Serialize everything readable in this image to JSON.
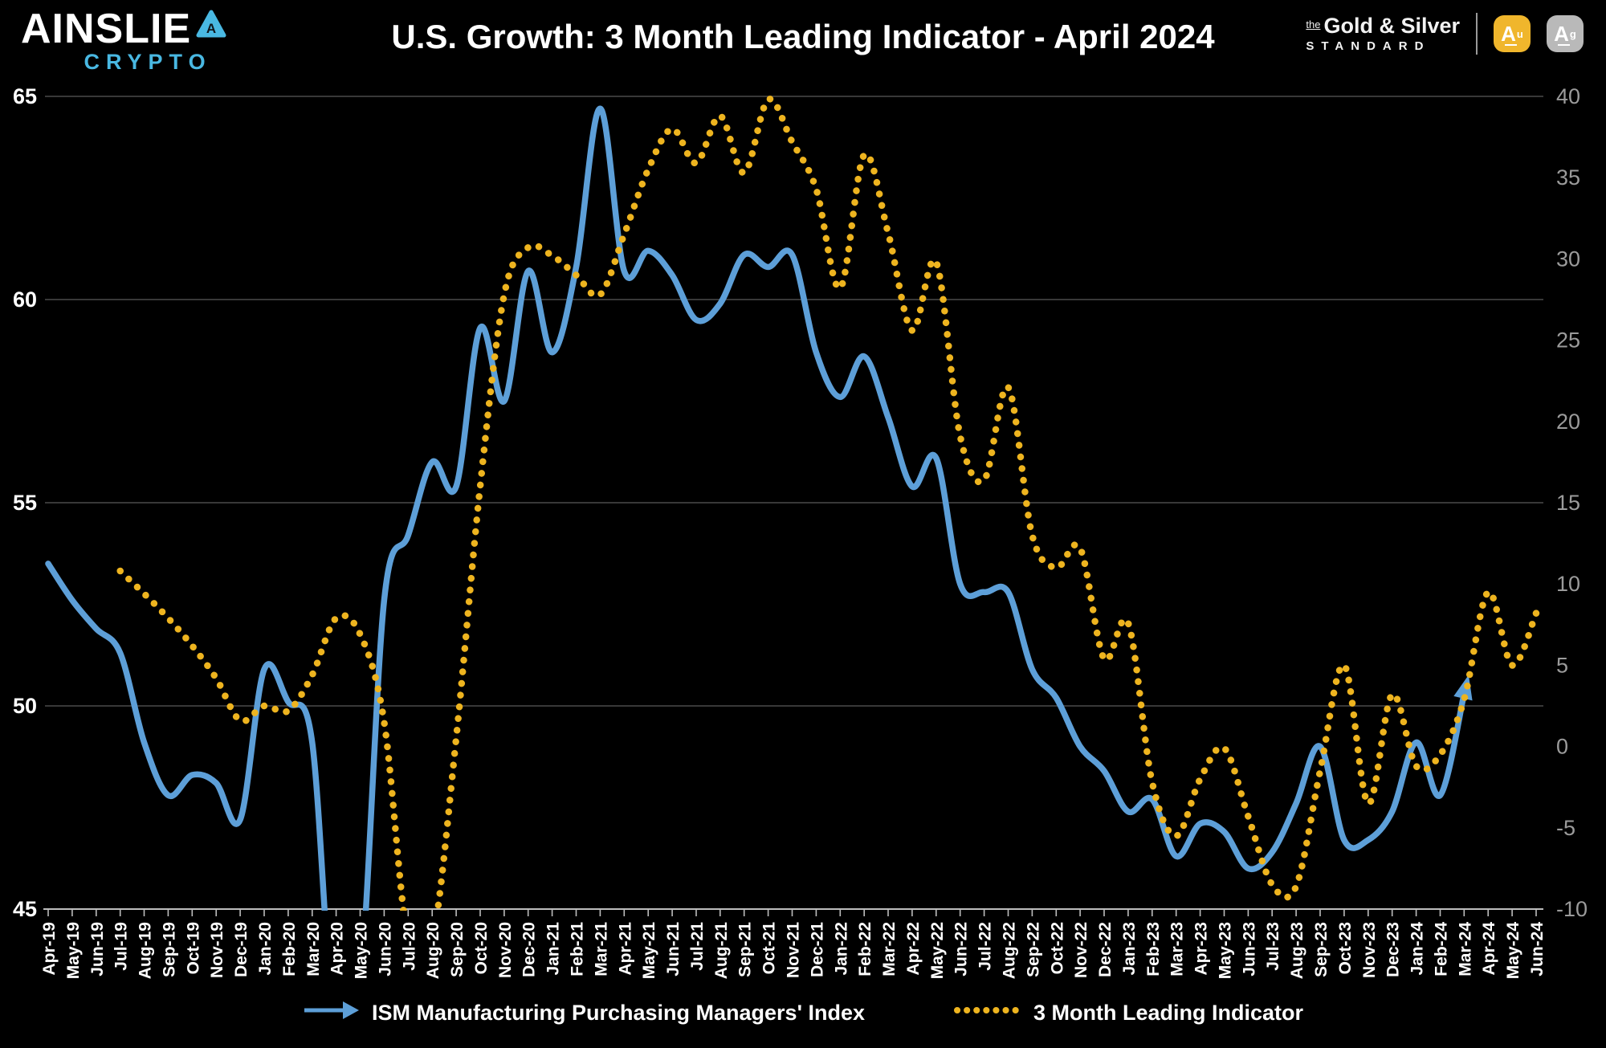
{
  "header": {
    "brand": {
      "wordmark": "AINSLIE",
      "badge_letter": "A",
      "sub": "CRYPTO"
    },
    "title": "U.S. Growth: 3 Month Leading Indicator - April 2024",
    "partner": {
      "the": "the",
      "line1": "Gold & Silver",
      "line2": "STANDARD",
      "gold_badge": {
        "letter": "A",
        "sup": "u"
      },
      "silver_badge": {
        "letter": "A",
        "sup": "g"
      }
    }
  },
  "colors": {
    "background": "#000000",
    "pmi_line": "#5d9fd8",
    "indicator_dots": "#eeb41f",
    "grid": "#4b4b4b",
    "axis": "#bdbdbd",
    "left_tick_text": "#ffffff",
    "right_tick_text": "#9b9b9b",
    "x_tick_text": "#ffffff",
    "brand_accent": "#49b8e2",
    "gold": "#f0b62c",
    "silver": "#b9b9b9"
  },
  "legend": [
    {
      "label": "ISM Manufacturing Purchasing Managers' Index",
      "marker": "arrow-line"
    },
    {
      "label": "3 Month Leading Indicator",
      "marker": "dotted-line"
    }
  ],
  "chart_data": {
    "type": "line",
    "title": "U.S. Growth: 3 Month Leading Indicator - April 2024",
    "grid": "horizontal-at-left-ticks",
    "legend_position": "bottom-center",
    "categories": [
      "Apr-19",
      "May-19",
      "Jun-19",
      "Jul-19",
      "Aug-19",
      "Sep-19",
      "Oct-19",
      "Nov-19",
      "Dec-19",
      "Jan-20",
      "Feb-20",
      "Mar-20",
      "Apr-20",
      "May-20",
      "Jun-20",
      "Jul-20",
      "Aug-20",
      "Sep-20",
      "Oct-20",
      "Nov-20",
      "Dec-20",
      "Jan-21",
      "Feb-21",
      "Mar-21",
      "Apr-21",
      "May-21",
      "Jun-21",
      "Jul-21",
      "Aug-21",
      "Sep-21",
      "Oct-21",
      "Nov-21",
      "Dec-21",
      "Jan-22",
      "Feb-22",
      "Mar-22",
      "Apr-22",
      "May-22",
      "Jun-22",
      "Jul-22",
      "Aug-22",
      "Sep-22",
      "Oct-22",
      "Nov-22",
      "Dec-22",
      "Jan-23",
      "Feb-23",
      "Mar-23",
      "Apr-23",
      "May-23",
      "Jun-23",
      "Jul-23",
      "Aug-23",
      "Sep-23",
      "Oct-23",
      "Nov-23",
      "Dec-23",
      "Jan-24",
      "Feb-24",
      "Mar-24",
      "Apr-24",
      "May-24",
      "Jun-24"
    ],
    "left_axis": {
      "min": 45,
      "max": 65,
      "ticks": [
        65,
        60,
        55,
        50,
        45
      ]
    },
    "right_axis": {
      "min": -10,
      "max": 40,
      "ticks": [
        40,
        35,
        30,
        25,
        20,
        15,
        10,
        5,
        0,
        -5,
        -10
      ]
    },
    "series": [
      {
        "name": "ISM Manufacturing Purchasing Managers' Index",
        "axis": "left",
        "style": "solid",
        "color": "#5d9fd8",
        "end_marker": "arrow",
        "values": [
          53.5,
          52.6,
          51.9,
          51.3,
          49.1,
          47.8,
          48.3,
          48.1,
          47.2,
          50.9,
          50.1,
          49.1,
          41.5,
          43.1,
          52.6,
          54.2,
          56.0,
          55.4,
          59.3,
          57.5,
          60.7,
          58.7,
          60.8,
          64.7,
          60.7,
          61.2,
          60.6,
          59.5,
          59.9,
          61.1,
          60.8,
          61.1,
          58.7,
          57.6,
          58.6,
          57.1,
          55.4,
          56.1,
          53.0,
          52.8,
          52.8,
          50.9,
          50.2,
          49.0,
          48.4,
          47.4,
          47.7,
          46.3,
          47.1,
          46.9,
          46.0,
          46.4,
          47.6,
          49.0,
          46.7,
          46.7,
          47.4,
          49.1,
          47.8,
          50.3,
          null,
          null,
          null
        ]
      },
      {
        "name": "3 Month Leading Indicator",
        "axis": "right",
        "style": "dotted",
        "color": "#eeb41f",
        "values": [
          null,
          null,
          null,
          10.8,
          9.4,
          7.9,
          6.2,
          4.2,
          1.6,
          2.5,
          2.2,
          4.4,
          7.9,
          6.9,
          1.5,
          -12,
          -12,
          0.5,
          16,
          27.8,
          30.7,
          30.2,
          29.0,
          27.8,
          31.5,
          35.5,
          38.0,
          35.9,
          38.8,
          35.3,
          39.8,
          37.2,
          34.3,
          28.2,
          36.4,
          31.6,
          25.6,
          29.8,
          19.1,
          16.4,
          22.1,
          13.0,
          11.0,
          12.2,
          5.4,
          7.6,
          -2.2,
          -5.5,
          -2.0,
          -0.1,
          -4.3,
          -8.5,
          -8.6,
          -1.5,
          5.0,
          -3.5,
          3.2,
          -1.2,
          -0.5,
          2.9,
          9.5,
          5.0,
          8.2
        ]
      }
    ]
  }
}
